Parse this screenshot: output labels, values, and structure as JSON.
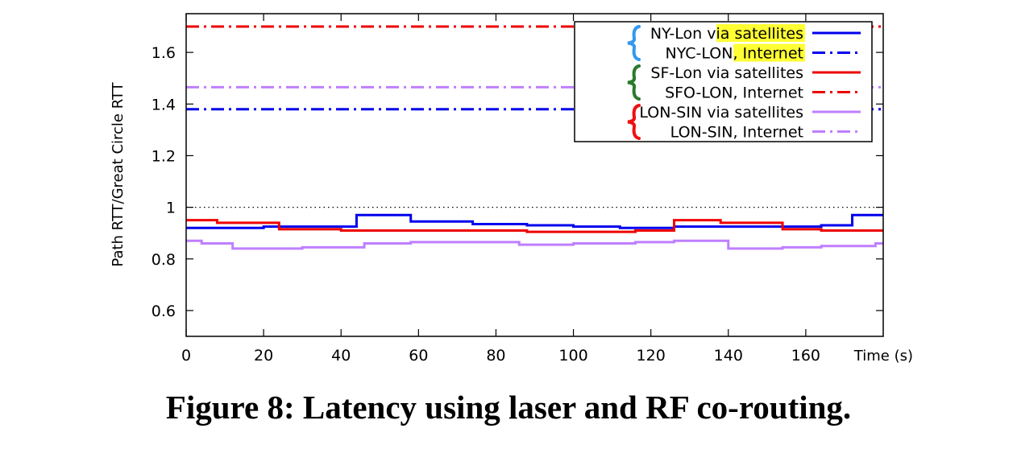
{
  "caption": "Figure 8: Latency using laser and RF co-routing.",
  "chart_data": {
    "type": "line",
    "title": "",
    "xlabel": "Time (s)",
    "ylabel": "Path RTT/Great Circle RTT",
    "xlim": [
      0,
      180
    ],
    "ylim": [
      0.5,
      1.75
    ],
    "xticks": [
      0,
      20,
      40,
      60,
      80,
      100,
      120,
      140,
      160
    ],
    "yticks": [
      0.6,
      0.8,
      1,
      1.2,
      1.4,
      1.6
    ],
    "ytick_labels": [
      "0.6",
      "0.8",
      "1",
      "1.2",
      "1.4",
      "1.6"
    ],
    "reference_line": {
      "y": 1.0,
      "style": "dotted",
      "color": "#000000"
    },
    "legend_position": "top-right",
    "series": [
      {
        "name": "NY-Lon via satellites",
        "name_plain": "NY-Lon via ",
        "name_highlight": "satellites",
        "color": "#0000ee",
        "dash": "solid",
        "step": true,
        "x": [
          0,
          20,
          34,
          44,
          58,
          74,
          88,
          100,
          112,
          126,
          140,
          154,
          164,
          172,
          180
        ],
        "y": [
          0.92,
          0.925,
          0.925,
          0.97,
          0.945,
          0.935,
          0.93,
          0.925,
          0.92,
          0.925,
          0.925,
          0.925,
          0.93,
          0.97,
          0.97
        ]
      },
      {
        "name": "NYC-LON, Internet",
        "name_plain": "NYC-LON, ",
        "name_highlight": "Internet",
        "color": "#0000ee",
        "dash": "dashdot",
        "step": false,
        "x": [
          0,
          180
        ],
        "y": [
          1.38,
          1.38
        ]
      },
      {
        "name": "SF-Lon via satellites",
        "color": "#ee0000",
        "dash": "solid",
        "step": true,
        "x": [
          0,
          8,
          24,
          40,
          56,
          72,
          88,
          104,
          116,
          126,
          138,
          154,
          164,
          180
        ],
        "y": [
          0.95,
          0.94,
          0.915,
          0.91,
          0.91,
          0.91,
          0.905,
          0.905,
          0.91,
          0.95,
          0.94,
          0.915,
          0.91,
          0.91
        ]
      },
      {
        "name": "SFO-LON, Internet",
        "color": "#ee0000",
        "dash": "dashdot",
        "step": false,
        "x": [
          0,
          180
        ],
        "y": [
          1.7,
          1.7
        ]
      },
      {
        "name": "LON-SIN via satellites",
        "color": "#bf7fff",
        "dash": "solid",
        "step": true,
        "x": [
          0,
          4,
          12,
          30,
          46,
          58,
          70,
          86,
          100,
          116,
          126,
          140,
          154,
          164,
          178,
          180
        ],
        "y": [
          0.87,
          0.86,
          0.84,
          0.845,
          0.86,
          0.865,
          0.865,
          0.855,
          0.86,
          0.865,
          0.87,
          0.84,
          0.845,
          0.85,
          0.86,
          0.86
        ]
      },
      {
        "name": "LON-SIN, Internet",
        "color": "#bf7fff",
        "dash": "dashdot",
        "step": false,
        "x": [
          0,
          180
        ],
        "y": [
          1.465,
          1.465
        ]
      }
    ],
    "brace_colors": [
      "#3399ee",
      "#2a7a2a",
      "#ee1111"
    ],
    "highlight_color": "#ffff33"
  }
}
